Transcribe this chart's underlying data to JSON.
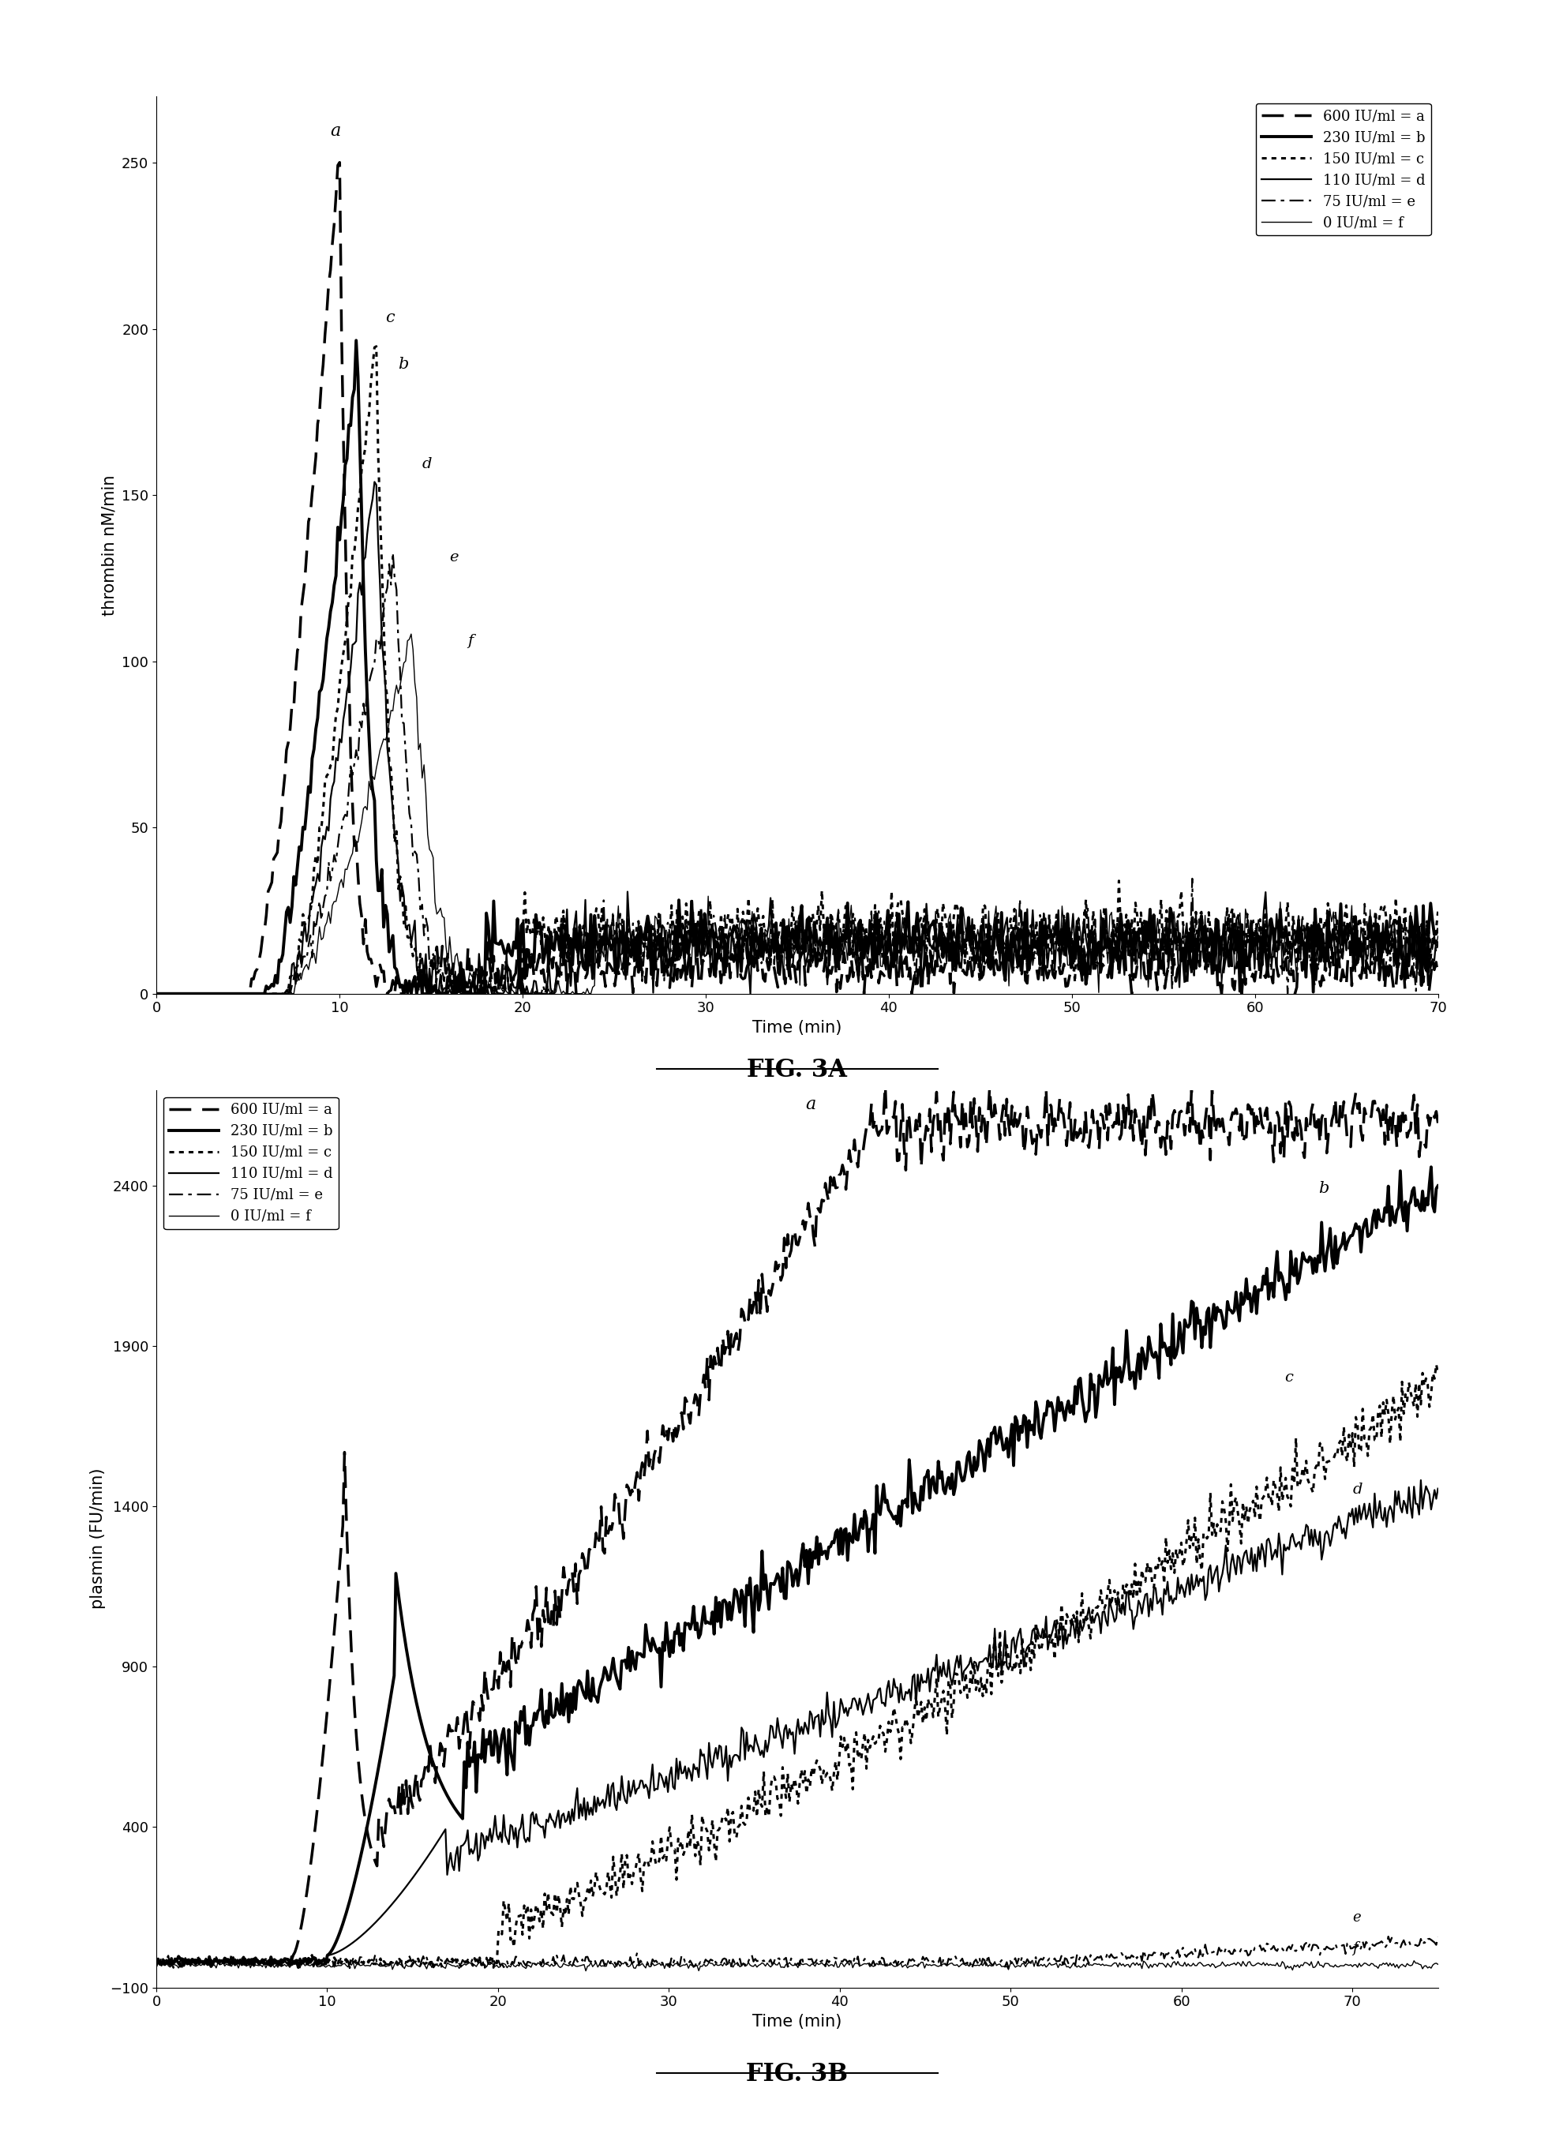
{
  "fig3a": {
    "title": "FIG. 3A",
    "ylabel": "thrombin nM/min",
    "xlabel": "Time (min)",
    "xlim": [
      0,
      70
    ],
    "ylim": [
      0,
      270
    ],
    "yticks": [
      0,
      50,
      100,
      150,
      200,
      250
    ],
    "xticks": [
      0,
      10,
      20,
      30,
      40,
      50,
      60,
      70
    ],
    "legend_labels": [
      "600 IU/ml = a",
      "230 IU/ml = b",
      "150 IU/ml = c",
      "110 IU/ml = d",
      "75 IU/ml = e",
      "0 IU/ml = f"
    ]
  },
  "fig3b": {
    "title": "FIG. 3B",
    "ylabel": "plasmin (FU/min)",
    "xlabel": "Time (min)",
    "xlim": [
      0,
      75
    ],
    "ylim": [
      -100,
      2700
    ],
    "yticks": [
      -100,
      400,
      900,
      1400,
      1900,
      2400
    ],
    "xticks": [
      0,
      10,
      20,
      30,
      40,
      50,
      60,
      70
    ],
    "legend_labels": [
      "600 IU/ml = a",
      "230 IU/ml = b",
      "150 IU/ml = c",
      "110 IU/ml = d",
      "75 IU/ml = e",
      "0 IU/ml = f"
    ]
  }
}
